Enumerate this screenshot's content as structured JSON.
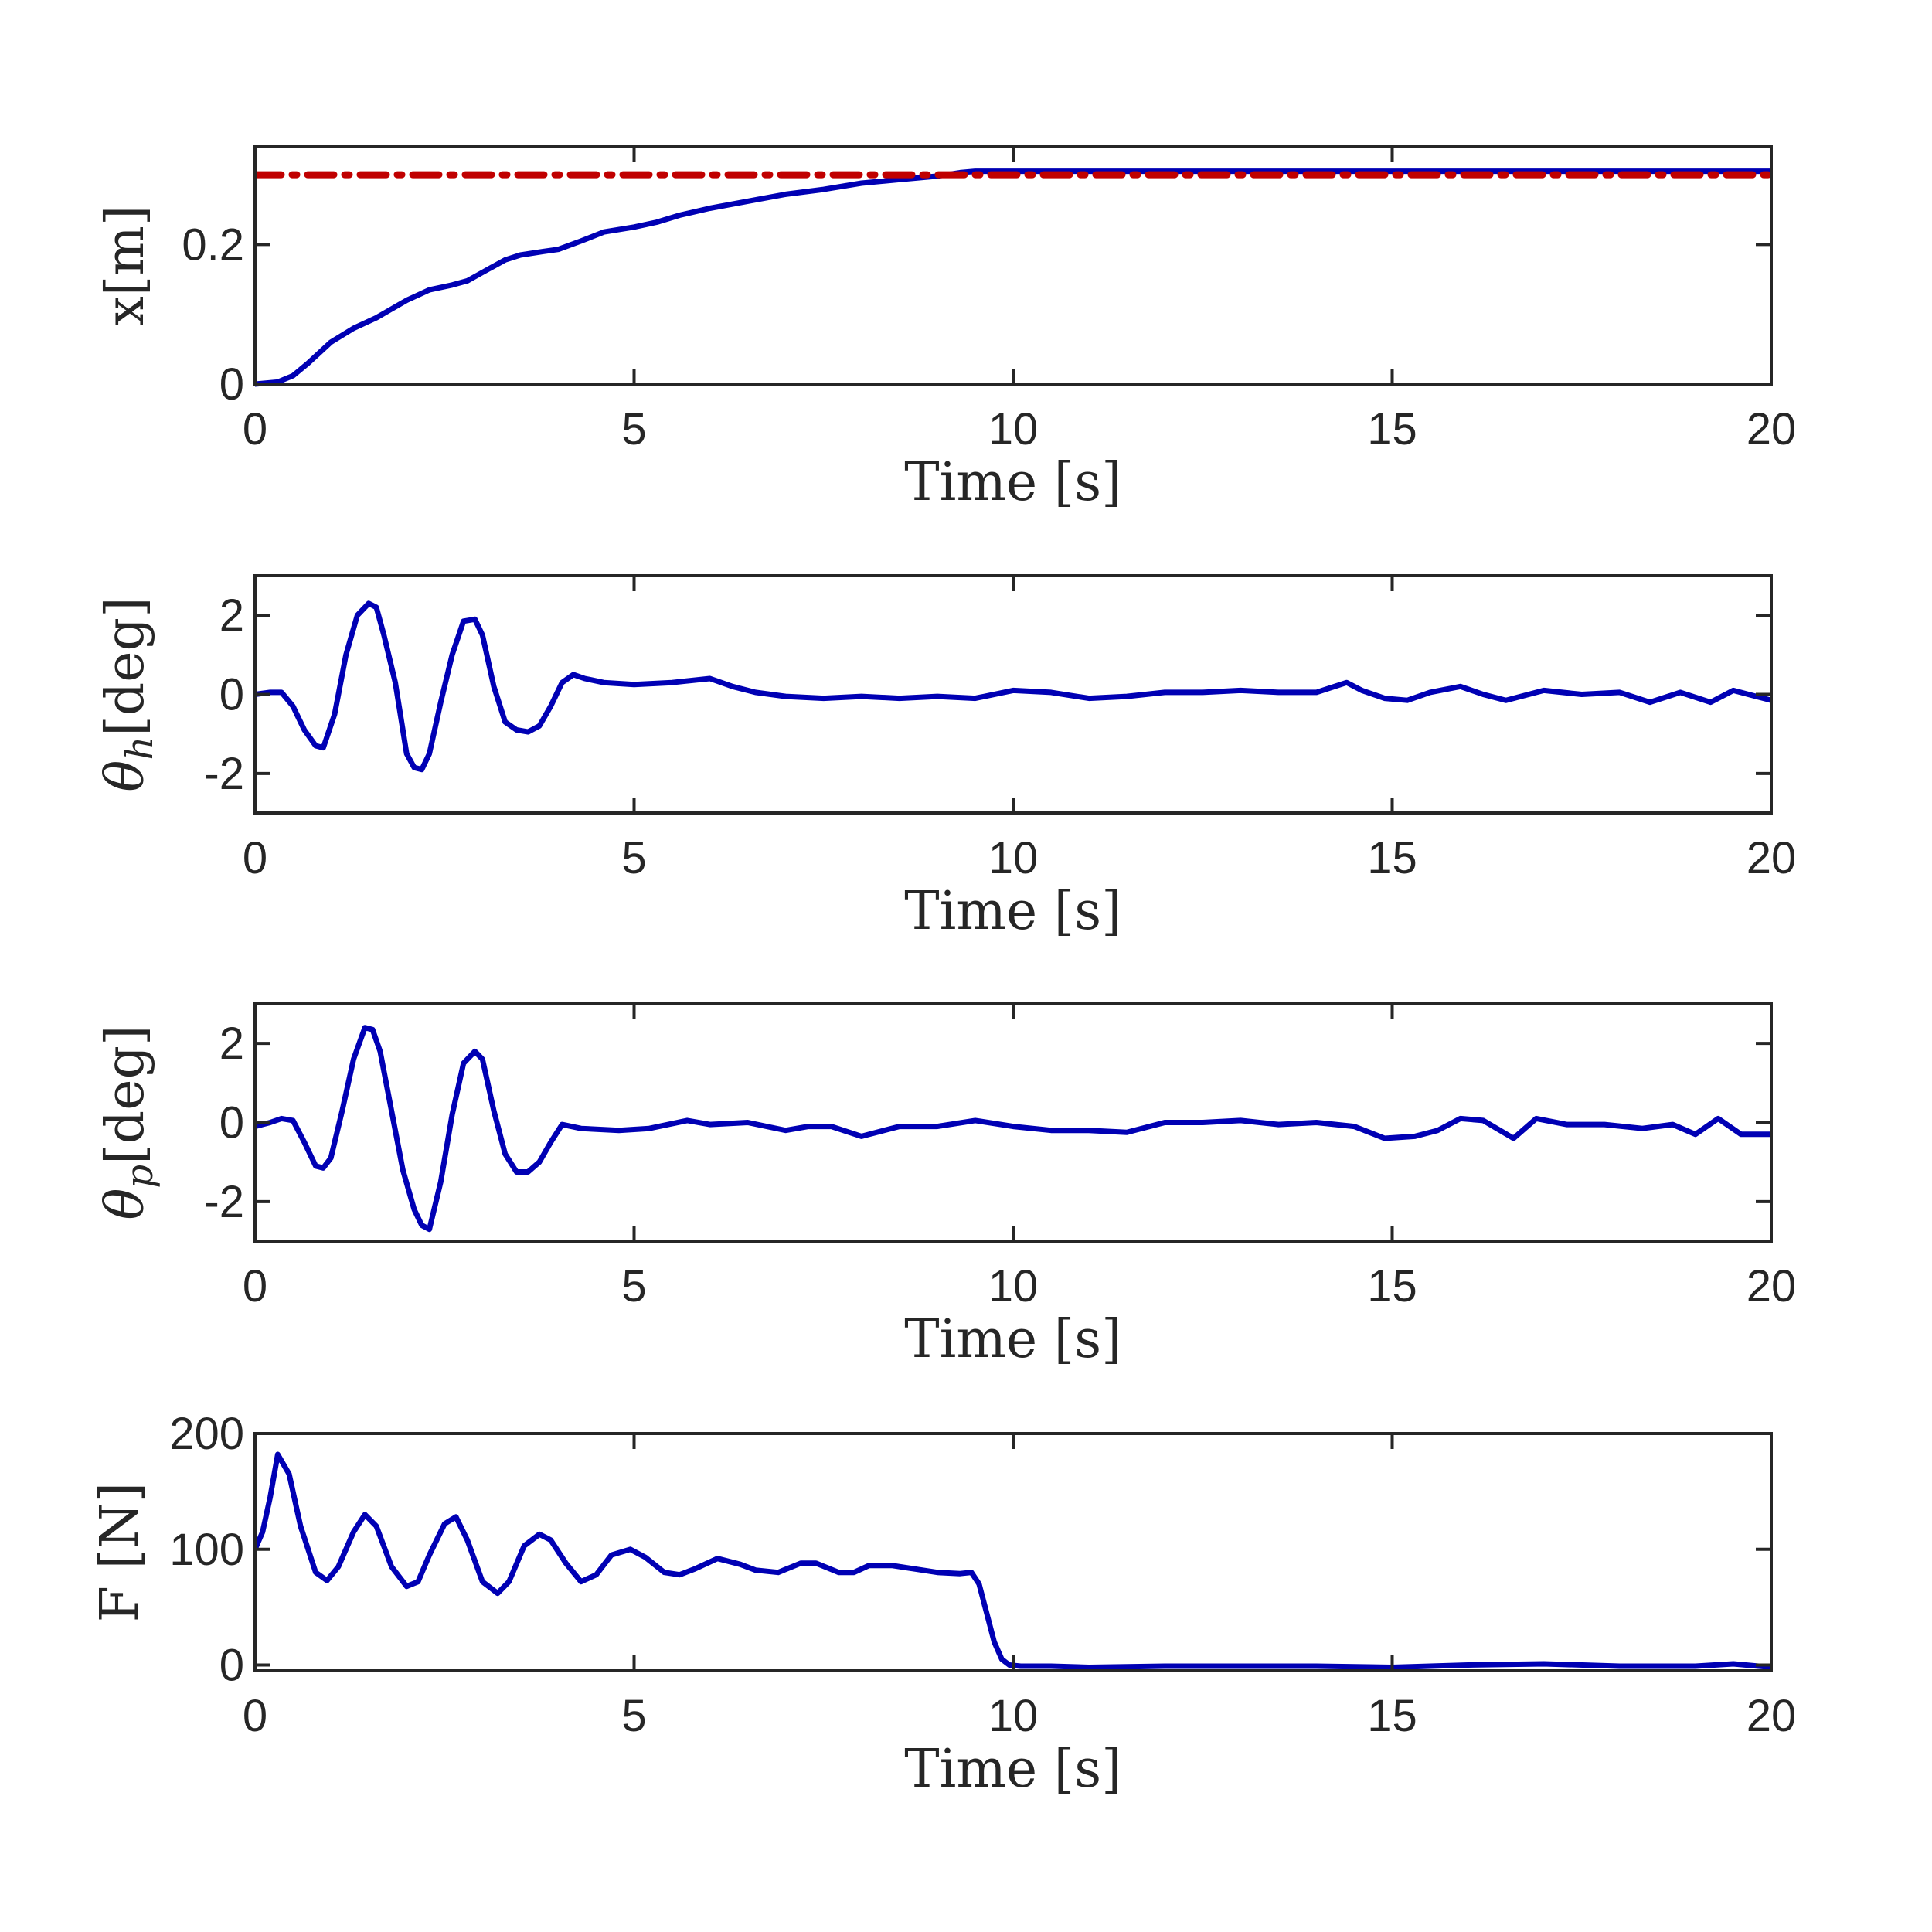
{
  "chart_data": [
    {
      "type": "line",
      "xlabel": "Time [s]",
      "ylabel": "x[m]",
      "xlim": [
        0,
        20
      ],
      "ylim": [
        0,
        0.34
      ],
      "xticks": [
        0,
        5,
        10,
        15,
        20
      ],
      "xtick_labels": [
        "0",
        "5",
        "10",
        "15",
        "20"
      ],
      "yticks": [
        0,
        0.2
      ],
      "ytick_labels": [
        "0",
        "0.2"
      ],
      "grid": false,
      "series": [
        {
          "color": "#0000b4",
          "style": "solid",
          "x": [
            0,
            0.3,
            0.5,
            0.7,
            1.0,
            1.3,
            1.6,
            2.0,
            2.3,
            2.6,
            2.8,
            3.0,
            3.3,
            3.5,
            3.8,
            4.0,
            4.3,
            4.6,
            5.0,
            5.3,
            5.6,
            6.0,
            6.5,
            7.0,
            7.5,
            8.0,
            8.5,
            9.0,
            9.3,
            9.5,
            10,
            12,
            15,
            18,
            20
          ],
          "y": [
            0,
            0.003,
            0.012,
            0.03,
            0.06,
            0.08,
            0.095,
            0.12,
            0.135,
            0.142,
            0.148,
            0.16,
            0.178,
            0.185,
            0.19,
            0.193,
            0.205,
            0.218,
            0.225,
            0.232,
            0.242,
            0.252,
            0.262,
            0.272,
            0.279,
            0.288,
            0.293,
            0.298,
            0.303,
            0.305,
            0.305,
            0.305,
            0.305,
            0.305,
            0.305
          ]
        },
        {
          "color": "#c00000",
          "style": "dashdot",
          "x": [
            0,
            20
          ],
          "y": [
            0.3,
            0.3
          ]
        }
      ]
    },
    {
      "type": "line",
      "xlabel": "Time [s]",
      "ylabel_symbol": "θ",
      "ylabel_subscript": "h",
      "ylabel_unit": "[deg]",
      "xlim": [
        0,
        20
      ],
      "ylim": [
        -3,
        3
      ],
      "xticks": [
        0,
        5,
        10,
        15,
        20
      ],
      "xtick_labels": [
        "0",
        "5",
        "10",
        "15",
        "20"
      ],
      "yticks": [
        -2,
        0,
        2
      ],
      "ytick_labels": [
        "-2",
        "0",
        "2"
      ],
      "grid": false,
      "series": [
        {
          "color": "#0000b4",
          "style": "solid",
          "x": [
            0,
            0.2,
            0.35,
            0.5,
            0.65,
            0.8,
            0.9,
            1.05,
            1.2,
            1.35,
            1.5,
            1.6,
            1.7,
            1.85,
            2.0,
            2.1,
            2.2,
            2.3,
            2.45,
            2.6,
            2.75,
            2.9,
            3.0,
            3.15,
            3.3,
            3.45,
            3.6,
            3.75,
            3.9,
            4.05,
            4.2,
            4.35,
            4.6,
            5.0,
            5.5,
            6.0,
            6.3,
            6.6,
            7.0,
            7.5,
            8.0,
            8.5,
            9.0,
            9.5,
            10.0,
            10.5,
            11.0,
            11.5,
            12.0,
            12.5,
            13.0,
            13.5,
            14.0,
            14.4,
            14.6,
            14.9,
            15.2,
            15.5,
            15.9,
            16.2,
            16.5,
            17.0,
            17.5,
            18.0,
            18.4,
            18.8,
            19.2,
            19.5,
            19.8,
            20.0
          ],
          "y": [
            0,
            0.05,
            0.05,
            -0.3,
            -0.9,
            -1.3,
            -1.35,
            -0.5,
            1.0,
            2.0,
            2.3,
            2.2,
            1.5,
            0.3,
            -1.5,
            -1.85,
            -1.9,
            -1.5,
            -0.2,
            1.0,
            1.85,
            1.9,
            1.5,
            0.2,
            -0.7,
            -0.9,
            -0.95,
            -0.8,
            -0.3,
            0.3,
            0.5,
            0.4,
            0.3,
            0.25,
            0.3,
            0.4,
            0.2,
            0.05,
            -0.05,
            -0.1,
            -0.05,
            -0.1,
            -0.05,
            -0.1,
            0.1,
            0.05,
            -0.1,
            -0.05,
            0.05,
            0.05,
            0.1,
            0.05,
            0.05,
            0.3,
            0.1,
            -0.1,
            -0.15,
            0.05,
            0.2,
            0.0,
            -0.15,
            0.1,
            0.0,
            0.05,
            -0.2,
            0.05,
            -0.2,
            0.1,
            -0.05,
            -0.15
          ]
        }
      ]
    },
    {
      "type": "line",
      "xlabel": "Time [s]",
      "ylabel_symbol": "θ",
      "ylabel_subscript": "p",
      "ylabel_unit": "[deg]",
      "xlim": [
        0,
        20
      ],
      "ylim": [
        -3,
        3
      ],
      "xticks": [
        0,
        5,
        10,
        15,
        20
      ],
      "xtick_labels": [
        "0",
        "5",
        "10",
        "15",
        "20"
      ],
      "yticks": [
        -2,
        0,
        2
      ],
      "ytick_labels": [
        "-2",
        "0",
        "2"
      ],
      "grid": false,
      "series": [
        {
          "color": "#0000b4",
          "style": "solid",
          "x": [
            0,
            0.2,
            0.35,
            0.5,
            0.65,
            0.8,
            0.9,
            1.0,
            1.15,
            1.3,
            1.45,
            1.55,
            1.65,
            1.8,
            1.95,
            2.1,
            2.2,
            2.3,
            2.45,
            2.6,
            2.75,
            2.9,
            3.0,
            3.15,
            3.3,
            3.45,
            3.6,
            3.75,
            3.9,
            4.05,
            4.3,
            4.8,
            5.2,
            5.7,
            6.0,
            6.5,
            7.0,
            7.3,
            7.6,
            8.0,
            8.5,
            9.0,
            9.5,
            10.0,
            10.5,
            11.0,
            11.5,
            12.0,
            12.5,
            13.0,
            13.5,
            14.0,
            14.5,
            14.9,
            15.3,
            15.6,
            15.9,
            16.2,
            16.6,
            16.9,
            17.3,
            17.8,
            18.3,
            18.7,
            19.0,
            19.3,
            19.6,
            20.0
          ],
          "y": [
            -0.1,
            0.0,
            0.1,
            0.05,
            -0.5,
            -1.1,
            -1.15,
            -0.9,
            0.3,
            1.6,
            2.4,
            2.35,
            1.8,
            0.3,
            -1.2,
            -2.2,
            -2.6,
            -2.7,
            -1.5,
            0.2,
            1.5,
            1.8,
            1.6,
            0.3,
            -0.8,
            -1.25,
            -1.25,
            -1.0,
            -0.5,
            -0.05,
            -0.15,
            -0.2,
            -0.15,
            0.05,
            -0.05,
            0.0,
            -0.2,
            -0.1,
            -0.1,
            -0.35,
            -0.1,
            -0.1,
            0.05,
            -0.1,
            -0.2,
            -0.2,
            -0.25,
            0.0,
            0.0,
            0.05,
            -0.05,
            0.0,
            -0.1,
            -0.4,
            -0.35,
            -0.2,
            0.1,
            0.05,
            -0.4,
            0.1,
            -0.05,
            -0.05,
            -0.15,
            -0.05,
            -0.3,
            0.1,
            -0.3,
            -0.3
          ]
        }
      ]
    },
    {
      "type": "line",
      "xlabel": "Time [s]",
      "ylabel": "F [N]",
      "xlim": [
        0,
        20
      ],
      "ylim": [
        -5,
        200
      ],
      "xticks": [
        0,
        5,
        10,
        15,
        20
      ],
      "xtick_labels": [
        "0",
        "5",
        "10",
        "15",
        "20"
      ],
      "yticks": [
        0,
        100,
        200
      ],
      "ytick_labels": [
        "0",
        "100",
        "200"
      ],
      "grid": false,
      "series": [
        {
          "color": "#0000b4",
          "style": "solid",
          "x": [
            0,
            0.1,
            0.2,
            0.3,
            0.45,
            0.6,
            0.8,
            0.95,
            1.1,
            1.3,
            1.45,
            1.6,
            1.8,
            2.0,
            2.15,
            2.3,
            2.5,
            2.65,
            2.8,
            3.0,
            3.2,
            3.35,
            3.55,
            3.75,
            3.9,
            4.1,
            4.3,
            4.5,
            4.7,
            4.95,
            5.15,
            5.4,
            5.6,
            5.8,
            6.1,
            6.4,
            6.6,
            6.9,
            7.2,
            7.4,
            7.7,
            7.9,
            8.1,
            8.4,
            8.7,
            9.0,
            9.3,
            9.45,
            9.55,
            9.65,
            9.75,
            9.85,
            9.95,
            10.1,
            10.5,
            11.0,
            12.0,
            13.0,
            14.0,
            15.0,
            16.0,
            17.0,
            18.0,
            19.0,
            19.5,
            20.0
          ],
          "y": [
            100,
            115,
            145,
            182,
            165,
            120,
            80,
            73,
            85,
            115,
            130,
            120,
            85,
            68,
            72,
            95,
            122,
            128,
            108,
            72,
            62,
            72,
            103,
            113,
            108,
            88,
            72,
            78,
            95,
            100,
            93,
            80,
            78,
            83,
            92,
            87,
            82,
            80,
            88,
            88,
            80,
            80,
            86,
            86,
            83,
            80,
            79,
            80,
            70,
            45,
            20,
            5,
            0,
            -1,
            -1,
            -2,
            -1,
            -1,
            -1,
            -2,
            0,
            1,
            -1,
            -1,
            1,
            -2
          ]
        }
      ]
    }
  ]
}
